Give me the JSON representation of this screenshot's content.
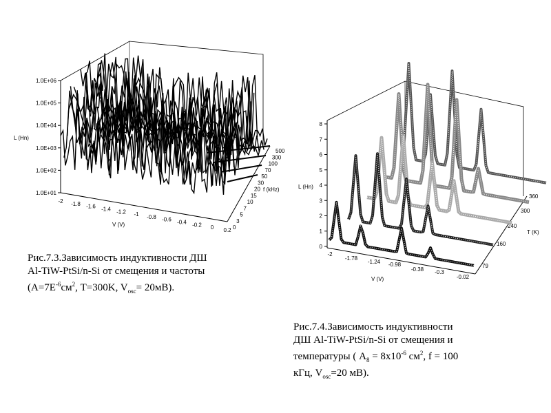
{
  "chart_data": [
    {
      "type": "surface-3d",
      "title": "",
      "ylabel": "L (Hn)",
      "xlabel": "V (V)",
      "zlabel": "f (kHz)",
      "y_ticks": [
        "1.0E+01",
        "1.0E+02",
        "1.0E+03",
        "1.0E+04",
        "1.0E+05",
        "1.0E+06"
      ],
      "x_ticks": [
        "-2",
        "-1.8",
        "-1.6",
        "-1.4",
        "-1.2",
        "-1",
        "-0.8",
        "-0.6",
        "-0.4",
        "-0.2",
        "0",
        "0.2"
      ],
      "z_ticks": [
        "0",
        "3",
        "5",
        "7",
        "10",
        "15",
        "20",
        "30",
        "50",
        "70",
        "100",
        "300",
        "500"
      ],
      "ylim": [
        10,
        1000000
      ],
      "log_y": true
    },
    {
      "type": "ribbon-3d",
      "title": "",
      "ylabel": "L (Hn)",
      "xlabel": "V (V)",
      "zlabel": "T (K)",
      "y_ticks": [
        "0",
        "1",
        "2",
        "3",
        "4",
        "5",
        "6",
        "7",
        "8"
      ],
      "x_ticks": [
        "-2",
        "-1.78",
        "-1.24",
        "-0.98",
        "-0.38",
        "-0.3",
        "-0.02"
      ],
      "z_ticks": [
        "79",
        "160",
        "240",
        "300",
        "360"
      ],
      "ylim": [
        0,
        8
      ]
    }
  ],
  "captions": {
    "left_l1": "Рис.7.3.Зависимость индуктивности  ДШ",
    "left_l2": "Al-TiW-PtSi/n-Si от смещения и частоты",
    "left_l3_a": "(A=7E",
    "left_l3_sup1": "-6",
    "left_l3_b": "см",
    "left_l3_sup2": "2",
    "left_l3_c": ", T=300K, V",
    "left_l3_sub": "osc",
    "left_l3_d": "= 20мВ).",
    "right_l1": "Рис.7.4.Зависимость индуктивности",
    "right_l2": "ДШ Al-TiW-PtSi/n-Si от смещения и",
    "right_l3_a": "температуры ( А",
    "right_l3_sub": "8",
    "right_l3_b": " = 8x10",
    "right_l3_sup1": "-6",
    "right_l3_c": " см",
    "right_l3_sup2": "2",
    "right_l3_d": ", f = 100",
    "right_l4_a": "кГц, V",
    "right_l4_sub": "osc",
    "right_l4_b": "=20 мВ)."
  }
}
